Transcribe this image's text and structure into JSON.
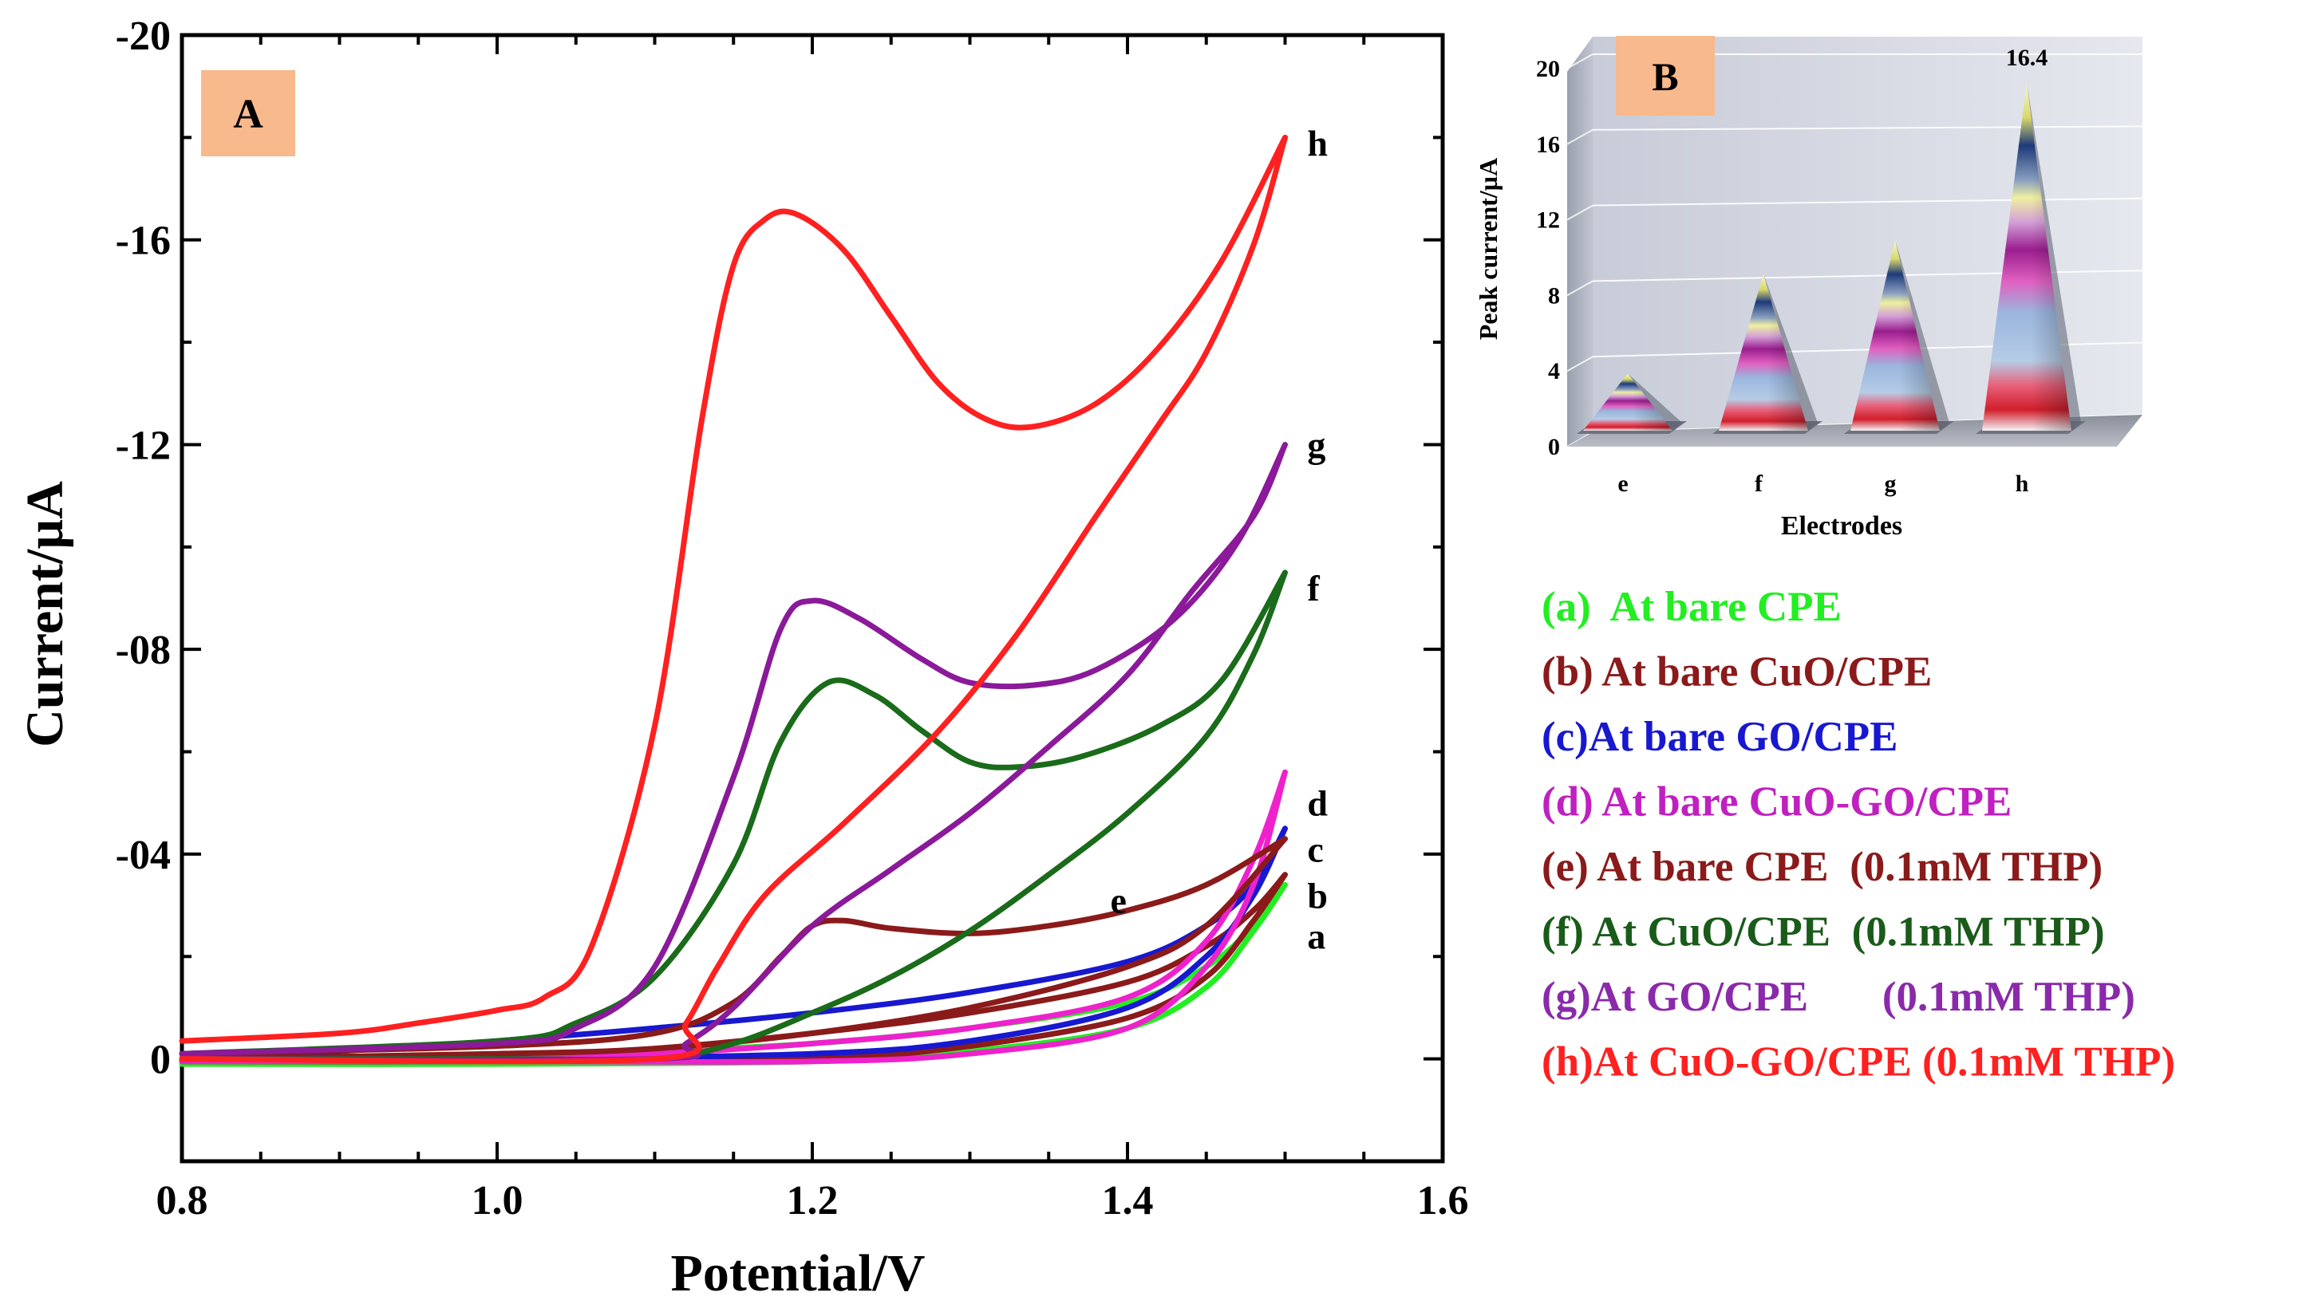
{
  "chart_data": [
    {
      "id": "A",
      "type": "line",
      "panel_label": "A",
      "xlabel": "Potential/V",
      "ylabel": "Current/µA",
      "xlim": [
        0.8,
        1.6
      ],
      "ylim": [
        2,
        -20
      ],
      "x_ticks": [
        {
          "value": 0.8,
          "label": "0.8"
        },
        {
          "value": 1.0,
          "label": "1.0"
        },
        {
          "value": 1.2,
          "label": "1.2"
        },
        {
          "value": 1.4,
          "label": "1.4"
        },
        {
          "value": 1.6,
          "label": "1.6"
        }
      ],
      "y_ticks": [
        {
          "value": 0,
          "label": "0"
        },
        {
          "value": -4,
          "label": "-04"
        },
        {
          "value": -8,
          "label": "-08"
        },
        {
          "value": -12,
          "label": "-12"
        },
        {
          "value": -16,
          "label": "-16"
        },
        {
          "value": -20,
          "label": "-20"
        }
      ],
      "series": [
        {
          "name": "a",
          "color": "#22ee22",
          "forward": [
            [
              0.8,
              0.0
            ],
            [
              1.0,
              0.0
            ],
            [
              1.1,
              -0.15
            ],
            [
              1.2,
              -0.3
            ],
            [
              1.3,
              -0.6
            ],
            [
              1.4,
              -1.1
            ],
            [
              1.45,
              -1.8
            ],
            [
              1.48,
              -2.6
            ],
            [
              1.5,
              -3.4
            ]
          ],
          "reverse": [
            [
              1.5,
              -3.4
            ],
            [
              1.48,
              -2.5
            ],
            [
              1.45,
              -1.4
            ],
            [
              1.4,
              -0.6
            ],
            [
              1.3,
              -0.15
            ],
            [
              1.2,
              0.05
            ],
            [
              1.0,
              0.1
            ],
            [
              0.8,
              0.1
            ]
          ],
          "label_pos": [
            1.505,
            -2.4
          ]
        },
        {
          "name": "b",
          "color": "#8b1a1a",
          "forward": [
            [
              0.8,
              0.0
            ],
            [
              1.0,
              0.0
            ],
            [
              1.1,
              -0.2
            ],
            [
              1.2,
              -0.5
            ],
            [
              1.3,
              -0.9
            ],
            [
              1.4,
              -1.5
            ],
            [
              1.45,
              -2.2
            ],
            [
              1.48,
              -2.9
            ],
            [
              1.5,
              -3.6
            ]
          ],
          "reverse": [
            [
              1.5,
              -3.6
            ],
            [
              1.48,
              -2.7
            ],
            [
              1.45,
              -1.6
            ],
            [
              1.4,
              -0.8
            ],
            [
              1.3,
              -0.25
            ],
            [
              1.2,
              0.0
            ],
            [
              1.0,
              0.05
            ],
            [
              0.8,
              0.05
            ]
          ],
          "label_pos": [
            1.505,
            -3.2
          ]
        },
        {
          "name": "c",
          "color": "#1818d0",
          "forward": [
            [
              0.8,
              0.0
            ],
            [
              0.9,
              -0.15
            ],
            [
              1.0,
              -0.35
            ],
            [
              1.1,
              -0.6
            ],
            [
              1.2,
              -0.9
            ],
            [
              1.3,
              -1.3
            ],
            [
              1.4,
              -1.9
            ],
            [
              1.45,
              -2.6
            ],
            [
              1.48,
              -3.4
            ],
            [
              1.5,
              -4.5
            ]
          ],
          "reverse": [
            [
              1.5,
              -4.5
            ],
            [
              1.48,
              -3.2
            ],
            [
              1.45,
              -2.0
            ],
            [
              1.4,
              -1.0
            ],
            [
              1.3,
              -0.35
            ],
            [
              1.2,
              -0.1
            ],
            [
              1.0,
              0.0
            ],
            [
              0.8,
              0.0
            ]
          ],
          "label_pos": [
            1.505,
            -4.1
          ]
        },
        {
          "name": "d",
          "color": "#ee22cc",
          "forward": [
            [
              0.8,
              0.0
            ],
            [
              1.0,
              0.0
            ],
            [
              1.1,
              -0.1
            ],
            [
              1.2,
              -0.3
            ],
            [
              1.3,
              -0.6
            ],
            [
              1.4,
              -1.2
            ],
            [
              1.45,
              -2.3
            ],
            [
              1.48,
              -3.9
            ],
            [
              1.5,
              -5.6
            ]
          ],
          "reverse": [
            [
              1.5,
              -5.6
            ],
            [
              1.48,
              -3.4
            ],
            [
              1.45,
              -1.8
            ],
            [
              1.4,
              -0.6
            ],
            [
              1.3,
              -0.1
            ],
            [
              1.2,
              0.05
            ],
            [
              1.0,
              0.05
            ],
            [
              0.8,
              0.05
            ]
          ],
          "label_pos": [
            1.505,
            -5.0
          ]
        },
        {
          "name": "e",
          "color": "#8b1a1a",
          "forward": [
            [
              0.8,
              -0.1
            ],
            [
              1.0,
              -0.25
            ],
            [
              1.1,
              -0.5
            ],
            [
              1.15,
              -1.1
            ],
            [
              1.18,
              -2.0
            ],
            [
              1.2,
              -2.6
            ],
            [
              1.22,
              -2.7
            ],
            [
              1.25,
              -2.55
            ],
            [
              1.3,
              -2.45
            ],
            [
              1.35,
              -2.6
            ],
            [
              1.4,
              -2.9
            ],
            [
              1.45,
              -3.4
            ],
            [
              1.5,
              -4.3
            ]
          ],
          "reverse": [
            [
              1.5,
              -4.3
            ],
            [
              1.45,
              -2.6
            ],
            [
              1.4,
              -1.8
            ],
            [
              1.3,
              -1.0
            ],
            [
              1.2,
              -0.5
            ],
            [
              1.1,
              -0.2
            ],
            [
              1.0,
              -0.1
            ],
            [
              0.8,
              0.0
            ]
          ],
          "label_pos": [
            1.38,
            -3.1
          ]
        },
        {
          "name": "f",
          "color": "#1a6b1a",
          "forward": [
            [
              0.8,
              -0.1
            ],
            [
              1.0,
              -0.35
            ],
            [
              1.05,
              -0.7
            ],
            [
              1.1,
              -1.6
            ],
            [
              1.15,
              -3.8
            ],
            [
              1.18,
              -6.2
            ],
            [
              1.21,
              -7.35
            ],
            [
              1.24,
              -7.1
            ],
            [
              1.27,
              -6.4
            ],
            [
              1.3,
              -5.8
            ],
            [
              1.33,
              -5.7
            ],
            [
              1.37,
              -5.9
            ],
            [
              1.42,
              -6.5
            ],
            [
              1.46,
              -7.4
            ],
            [
              1.5,
              -9.5
            ]
          ],
          "reverse": [
            [
              1.5,
              -9.5
            ],
            [
              1.48,
              -7.9
            ],
            [
              1.45,
              -6.3
            ],
            [
              1.4,
              -4.8
            ],
            [
              1.35,
              -3.6
            ],
            [
              1.3,
              -2.5
            ],
            [
              1.25,
              -1.6
            ],
            [
              1.2,
              -0.9
            ],
            [
              1.15,
              -0.3
            ],
            [
              1.1,
              0.0
            ],
            [
              1.0,
              0.0
            ],
            [
              0.8,
              0.0
            ]
          ],
          "label_pos": [
            1.505,
            -9.2
          ]
        },
        {
          "name": "g",
          "color": "#8a1a9a",
          "forward": [
            [
              0.8,
              -0.1
            ],
            [
              1.0,
              -0.3
            ],
            [
              1.05,
              -0.6
            ],
            [
              1.1,
              -1.8
            ],
            [
              1.15,
              -5.5
            ],
            [
              1.18,
              -8.4
            ],
            [
              1.2,
              -8.95
            ],
            [
              1.23,
              -8.6
            ],
            [
              1.27,
              -7.8
            ],
            [
              1.3,
              -7.35
            ],
            [
              1.34,
              -7.3
            ],
            [
              1.38,
              -7.6
            ],
            [
              1.43,
              -8.6
            ],
            [
              1.47,
              -10.1
            ],
            [
              1.5,
              -12.0
            ]
          ],
          "reverse": [
            [
              1.5,
              -12.0
            ],
            [
              1.48,
              -10.6
            ],
            [
              1.44,
              -9.1
            ],
            [
              1.4,
              -7.5
            ],
            [
              1.35,
              -6.1
            ],
            [
              1.3,
              -4.8
            ],
            [
              1.25,
              -3.7
            ],
            [
              1.2,
              -2.6
            ],
            [
              1.15,
              -1.0
            ],
            [
              1.12,
              -0.3
            ],
            [
              1.1,
              0.0
            ],
            [
              0.8,
              0.0
            ]
          ],
          "label_pos": [
            1.505,
            -12.0
          ]
        },
        {
          "name": "h",
          "color": "#ff2020",
          "forward": [
            [
              0.8,
              -0.35
            ],
            [
              0.9,
              -0.5
            ],
            [
              0.95,
              -0.7
            ],
            [
              1.0,
              -0.95
            ],
            [
              1.03,
              -1.2
            ],
            [
              1.06,
              -2.2
            ],
            [
              1.1,
              -6.5
            ],
            [
              1.13,
              -12.5
            ],
            [
              1.15,
              -15.5
            ],
            [
              1.17,
              -16.4
            ],
            [
              1.19,
              -16.5
            ],
            [
              1.22,
              -15.8
            ],
            [
              1.25,
              -14.5
            ],
            [
              1.28,
              -13.2
            ],
            [
              1.31,
              -12.5
            ],
            [
              1.34,
              -12.35
            ],
            [
              1.38,
              -12.8
            ],
            [
              1.42,
              -13.9
            ],
            [
              1.46,
              -15.6
            ],
            [
              1.5,
              -18.0
            ]
          ],
          "reverse": [
            [
              1.5,
              -18.0
            ],
            [
              1.48,
              -15.9
            ],
            [
              1.45,
              -13.8
            ],
            [
              1.42,
              -12.4
            ],
            [
              1.38,
              -10.6
            ],
            [
              1.33,
              -8.3
            ],
            [
              1.28,
              -6.4
            ],
            [
              1.22,
              -4.6
            ],
            [
              1.17,
              -3.2
            ],
            [
              1.14,
              -1.8
            ],
            [
              1.12,
              -0.7
            ],
            [
              1.1,
              0.0
            ],
            [
              0.8,
              0.0
            ]
          ],
          "label_pos": [
            1.505,
            -17.9
          ]
        }
      ]
    },
    {
      "id": "B",
      "type": "bar",
      "panel_label": "B",
      "xlabel": "Electrodes",
      "ylabel": "Peak current/µA",
      "ylim": [
        0,
        20
      ],
      "y_ticks": [
        0,
        4,
        8,
        12,
        16,
        20
      ],
      "categories": [
        "e",
        "f",
        "g",
        "h"
      ],
      "values": [
        2.7,
        7.4,
        9.0,
        16.4
      ],
      "annotations": [
        {
          "category": "h",
          "text": "16.4"
        }
      ]
    }
  ],
  "legend": [
    {
      "text": "(a)  At bare CPE",
      "color": "#22ee22"
    },
    {
      "text": "(b) At bare CuO/CPE",
      "color": "#8b1a1a"
    },
    {
      "text": "(c)At bare GO/CPE",
      "color": "#1818d0"
    },
    {
      "text": "(d) At bare CuO-GO/CPE",
      "color": "#c020c0"
    },
    {
      "text": "(e) At bare CPE  (0.1mM THP)",
      "color": "#8b1a1a"
    },
    {
      "text": "(f) At CuO/CPE  (0.1mM THP)",
      "color": "#1a5b1a"
    },
    {
      "text": "(g)At GO/CPE       (0.1mM THP)",
      "color": "#8a2aaa"
    },
    {
      "text": "(h)At CuO-GO/CPE (0.1mM THP)",
      "color": "#ff2020"
    }
  ]
}
